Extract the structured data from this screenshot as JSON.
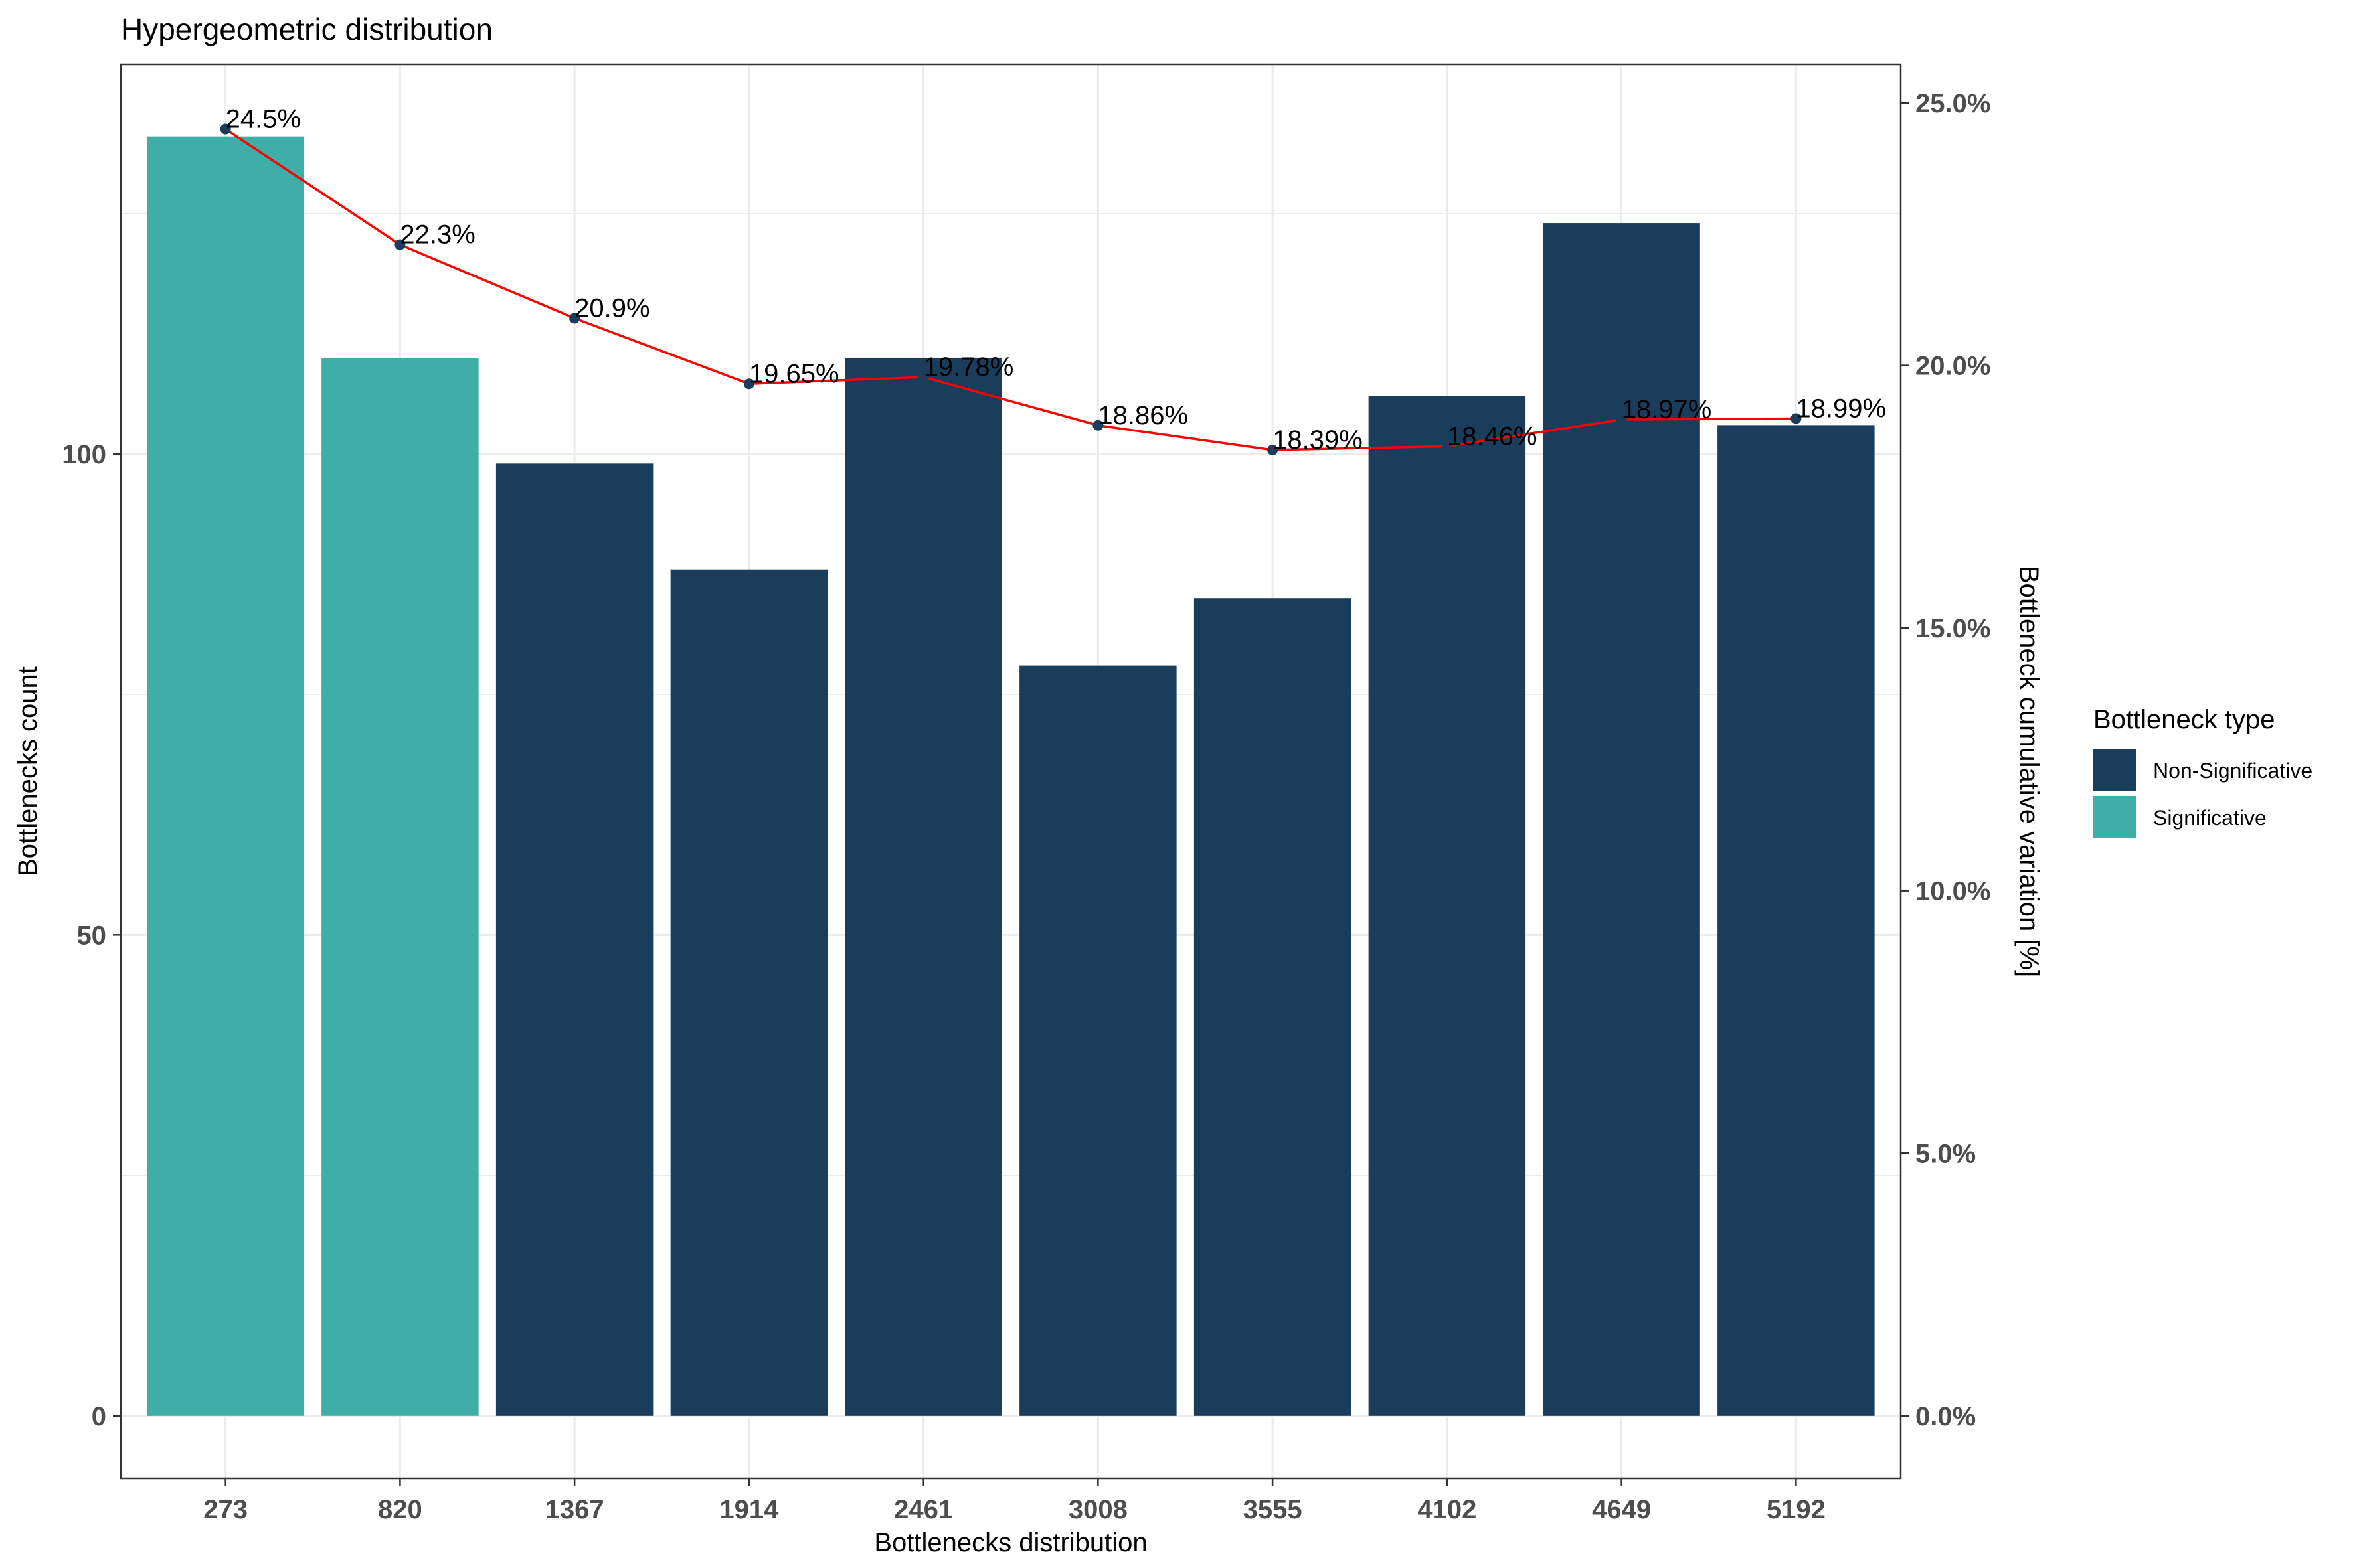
{
  "chart_data": {
    "type": "bar",
    "title": "Hypergeometric distribution",
    "xlabel": "Bottlenecks distribution",
    "ylabel": "Bottlenecks count",
    "y2label": "Bottleneck cumulative variation [%]",
    "categories": [
      "273",
      "820",
      "1367",
      "1914",
      "2461",
      "3008",
      "3555",
      "4102",
      "4649",
      "5192"
    ],
    "bars": [
      {
        "category": "273",
        "value": 133,
        "type": "Significative"
      },
      {
        "category": "820",
        "value": 110,
        "type": "Significative"
      },
      {
        "category": "1367",
        "value": 99,
        "type": "Non-Significative"
      },
      {
        "category": "1914",
        "value": 88,
        "type": "Non-Significative"
      },
      {
        "category": "2461",
        "value": 110,
        "type": "Non-Significative"
      },
      {
        "category": "3008",
        "value": 78,
        "type": "Non-Significative"
      },
      {
        "category": "3555",
        "value": 85,
        "type": "Non-Significative"
      },
      {
        "category": "4102",
        "value": 106,
        "type": "Non-Significative"
      },
      {
        "category": "4649",
        "value": 124,
        "type": "Non-Significative"
      },
      {
        "category": "5192",
        "value": 103,
        "type": "Non-Significative"
      }
    ],
    "line": {
      "values": [
        24.5,
        22.3,
        20.9,
        19.65,
        19.78,
        18.86,
        18.39,
        18.46,
        18.97,
        18.99
      ],
      "labels": [
        "24.5%",
        "22.3%",
        "20.9%",
        "19.65%",
        "19.78%",
        "18.86%",
        "18.39%",
        "18.46%",
        "18.97%",
        "18.99%"
      ],
      "color": "#ff0000",
      "point_color": "#1a3d5c"
    },
    "y_ticks": [
      "0",
      "50",
      "100"
    ],
    "y_tick_values": [
      0,
      50,
      100
    ],
    "ylim": [
      -6.5,
      140.5
    ],
    "y2_ticks": [
      "0.0%",
      "5.0%",
      "10.0%",
      "15.0%",
      "20.0%",
      "25.0%"
    ],
    "y2_tick_values": [
      0,
      5,
      10,
      15,
      20,
      25
    ],
    "grid": true,
    "legend": {
      "title": "Bottleneck type",
      "position": "right",
      "items": [
        {
          "label": "Non-Significative",
          "color": "#1a3d5c"
        },
        {
          "label": "Significative",
          "color": "#3fada8"
        }
      ]
    }
  }
}
